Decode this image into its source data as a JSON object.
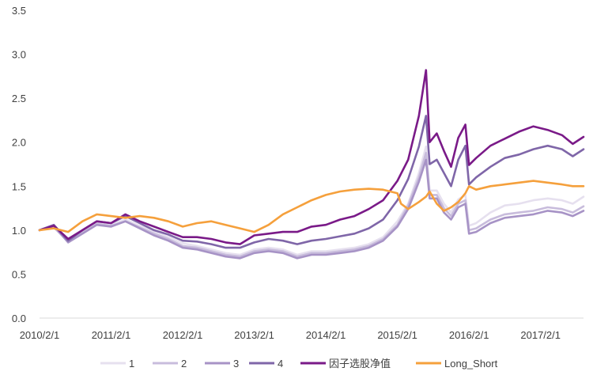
{
  "chart_data": {
    "type": "line",
    "title": "",
    "xlabel": "",
    "ylabel": "",
    "ylim": [
      0.0,
      3.5
    ],
    "y_ticks": [
      "0.0",
      "0.5",
      "1.0",
      "1.5",
      "2.0",
      "2.5",
      "3.0",
      "3.5"
    ],
    "x_ticks": [
      "2010/2/1",
      "2011/2/1",
      "2012/2/1",
      "2013/2/1",
      "2014/2/1",
      "2015/2/1",
      "2016/2/1",
      "2017/2/1"
    ],
    "x_tick_values": [
      2010.0,
      2011.0,
      2012.0,
      2013.0,
      2014.0,
      2015.0,
      2016.0,
      2017.0
    ],
    "xlim": [
      2010.0,
      2017.6
    ],
    "grid": false,
    "legend_position": "bottom",
    "series": [
      {
        "name": "1",
        "color": "#e6e0ef",
        "points": [
          [
            2010.0,
            1.0
          ],
          [
            2010.2,
            1.04
          ],
          [
            2010.4,
            0.88
          ],
          [
            2010.6,
            0.98
          ],
          [
            2010.8,
            1.08
          ],
          [
            2011.0,
            1.06
          ],
          [
            2011.2,
            1.12
          ],
          [
            2011.4,
            1.05
          ],
          [
            2011.6,
            0.98
          ],
          [
            2011.8,
            0.92
          ],
          [
            2012.0,
            0.85
          ],
          [
            2012.2,
            0.82
          ],
          [
            2012.4,
            0.78
          ],
          [
            2012.6,
            0.74
          ],
          [
            2012.8,
            0.72
          ],
          [
            2013.0,
            0.78
          ],
          [
            2013.2,
            0.8
          ],
          [
            2013.4,
            0.78
          ],
          [
            2013.6,
            0.72
          ],
          [
            2013.8,
            0.76
          ],
          [
            2014.0,
            0.76
          ],
          [
            2014.2,
            0.78
          ],
          [
            2014.4,
            0.8
          ],
          [
            2014.6,
            0.84
          ],
          [
            2014.8,
            0.92
          ],
          [
            2015.0,
            1.1
          ],
          [
            2015.15,
            1.3
          ],
          [
            2015.3,
            1.65
          ],
          [
            2015.4,
            1.95
          ],
          [
            2015.45,
            1.45
          ],
          [
            2015.55,
            1.45
          ],
          [
            2015.65,
            1.3
          ],
          [
            2015.75,
            1.2
          ],
          [
            2015.85,
            1.35
          ],
          [
            2015.95,
            1.4
          ],
          [
            2016.0,
            1.05
          ],
          [
            2016.1,
            1.08
          ],
          [
            2016.3,
            1.2
          ],
          [
            2016.5,
            1.28
          ],
          [
            2016.7,
            1.3
          ],
          [
            2016.9,
            1.34
          ],
          [
            2017.1,
            1.36
          ],
          [
            2017.3,
            1.34
          ],
          [
            2017.45,
            1.3
          ],
          [
            2017.6,
            1.38
          ]
        ]
      },
      {
        "name": "2",
        "color": "#c8bcdc",
        "points": [
          [
            2010.0,
            1.0
          ],
          [
            2010.2,
            1.03
          ],
          [
            2010.4,
            0.87
          ],
          [
            2010.6,
            0.97
          ],
          [
            2010.8,
            1.07
          ],
          [
            2011.0,
            1.05
          ],
          [
            2011.2,
            1.1
          ],
          [
            2011.4,
            1.03
          ],
          [
            2011.6,
            0.96
          ],
          [
            2011.8,
            0.9
          ],
          [
            2012.0,
            0.82
          ],
          [
            2012.2,
            0.8
          ],
          [
            2012.4,
            0.76
          ],
          [
            2012.6,
            0.72
          ],
          [
            2012.8,
            0.7
          ],
          [
            2013.0,
            0.76
          ],
          [
            2013.2,
            0.78
          ],
          [
            2013.4,
            0.76
          ],
          [
            2013.6,
            0.7
          ],
          [
            2013.8,
            0.74
          ],
          [
            2014.0,
            0.74
          ],
          [
            2014.2,
            0.76
          ],
          [
            2014.4,
            0.78
          ],
          [
            2014.6,
            0.82
          ],
          [
            2014.8,
            0.9
          ],
          [
            2015.0,
            1.06
          ],
          [
            2015.15,
            1.28
          ],
          [
            2015.3,
            1.6
          ],
          [
            2015.4,
            1.88
          ],
          [
            2015.45,
            1.4
          ],
          [
            2015.55,
            1.4
          ],
          [
            2015.65,
            1.25
          ],
          [
            2015.75,
            1.16
          ],
          [
            2015.85,
            1.3
          ],
          [
            2015.95,
            1.34
          ],
          [
            2016.0,
            1.0
          ],
          [
            2016.1,
            1.02
          ],
          [
            2016.3,
            1.12
          ],
          [
            2016.5,
            1.18
          ],
          [
            2016.7,
            1.2
          ],
          [
            2016.9,
            1.22
          ],
          [
            2017.1,
            1.26
          ],
          [
            2017.3,
            1.24
          ],
          [
            2017.45,
            1.2
          ],
          [
            2017.6,
            1.27
          ]
        ]
      },
      {
        "name": "3",
        "color": "#a793c6",
        "points": [
          [
            2010.0,
            1.0
          ],
          [
            2010.2,
            1.05
          ],
          [
            2010.4,
            0.86
          ],
          [
            2010.6,
            0.96
          ],
          [
            2010.8,
            1.06
          ],
          [
            2011.0,
            1.04
          ],
          [
            2011.2,
            1.1
          ],
          [
            2011.4,
            1.02
          ],
          [
            2011.6,
            0.94
          ],
          [
            2011.8,
            0.88
          ],
          [
            2012.0,
            0.8
          ],
          [
            2012.2,
            0.78
          ],
          [
            2012.4,
            0.74
          ],
          [
            2012.6,
            0.7
          ],
          [
            2012.8,
            0.68
          ],
          [
            2013.0,
            0.74
          ],
          [
            2013.2,
            0.76
          ],
          [
            2013.4,
            0.74
          ],
          [
            2013.6,
            0.68
          ],
          [
            2013.8,
            0.72
          ],
          [
            2014.0,
            0.72
          ],
          [
            2014.2,
            0.74
          ],
          [
            2014.4,
            0.76
          ],
          [
            2014.6,
            0.8
          ],
          [
            2014.8,
            0.88
          ],
          [
            2015.0,
            1.04
          ],
          [
            2015.15,
            1.24
          ],
          [
            2015.3,
            1.55
          ],
          [
            2015.4,
            1.8
          ],
          [
            2015.45,
            1.36
          ],
          [
            2015.55,
            1.36
          ],
          [
            2015.65,
            1.2
          ],
          [
            2015.75,
            1.12
          ],
          [
            2015.85,
            1.26
          ],
          [
            2015.95,
            1.3
          ],
          [
            2016.0,
            0.96
          ],
          [
            2016.1,
            0.98
          ],
          [
            2016.3,
            1.08
          ],
          [
            2016.5,
            1.14
          ],
          [
            2016.7,
            1.16
          ],
          [
            2016.9,
            1.18
          ],
          [
            2017.1,
            1.22
          ],
          [
            2017.3,
            1.2
          ],
          [
            2017.45,
            1.16
          ],
          [
            2017.6,
            1.22
          ]
        ]
      },
      {
        "name": "4",
        "color": "#7f66a8",
        "points": [
          [
            2010.0,
            1.0
          ],
          [
            2010.2,
            1.06
          ],
          [
            2010.4,
            0.88
          ],
          [
            2010.6,
            1.0
          ],
          [
            2010.8,
            1.1
          ],
          [
            2011.0,
            1.08
          ],
          [
            2011.2,
            1.16
          ],
          [
            2011.4,
            1.08
          ],
          [
            2011.6,
            1.0
          ],
          [
            2011.8,
            0.95
          ],
          [
            2012.0,
            0.88
          ],
          [
            2012.2,
            0.87
          ],
          [
            2012.4,
            0.84
          ],
          [
            2012.6,
            0.8
          ],
          [
            2012.8,
            0.8
          ],
          [
            2013.0,
            0.86
          ],
          [
            2013.2,
            0.9
          ],
          [
            2013.4,
            0.88
          ],
          [
            2013.6,
            0.84
          ],
          [
            2013.8,
            0.88
          ],
          [
            2014.0,
            0.9
          ],
          [
            2014.2,
            0.93
          ],
          [
            2014.4,
            0.96
          ],
          [
            2014.6,
            1.02
          ],
          [
            2014.8,
            1.12
          ],
          [
            2015.0,
            1.34
          ],
          [
            2015.15,
            1.58
          ],
          [
            2015.3,
            1.95
          ],
          [
            2015.4,
            2.3
          ],
          [
            2015.45,
            1.75
          ],
          [
            2015.55,
            1.8
          ],
          [
            2015.65,
            1.65
          ],
          [
            2015.75,
            1.5
          ],
          [
            2015.85,
            1.8
          ],
          [
            2015.95,
            1.96
          ],
          [
            2016.0,
            1.52
          ],
          [
            2016.1,
            1.6
          ],
          [
            2016.3,
            1.72
          ],
          [
            2016.5,
            1.82
          ],
          [
            2016.7,
            1.86
          ],
          [
            2016.9,
            1.92
          ],
          [
            2017.1,
            1.96
          ],
          [
            2017.3,
            1.92
          ],
          [
            2017.45,
            1.84
          ],
          [
            2017.6,
            1.92
          ]
        ]
      },
      {
        "name": "因子选股净值",
        "color": "#7a1a88",
        "points": [
          [
            2010.0,
            1.0
          ],
          [
            2010.2,
            1.05
          ],
          [
            2010.4,
            0.9
          ],
          [
            2010.6,
            1.0
          ],
          [
            2010.8,
            1.1
          ],
          [
            2011.0,
            1.08
          ],
          [
            2011.2,
            1.18
          ],
          [
            2011.4,
            1.1
          ],
          [
            2011.6,
            1.04
          ],
          [
            2011.8,
            0.98
          ],
          [
            2012.0,
            0.92
          ],
          [
            2012.2,
            0.92
          ],
          [
            2012.4,
            0.9
          ],
          [
            2012.6,
            0.86
          ],
          [
            2012.8,
            0.84
          ],
          [
            2013.0,
            0.94
          ],
          [
            2013.2,
            0.96
          ],
          [
            2013.4,
            0.98
          ],
          [
            2013.6,
            0.98
          ],
          [
            2013.8,
            1.04
          ],
          [
            2014.0,
            1.06
          ],
          [
            2014.2,
            1.12
          ],
          [
            2014.4,
            1.16
          ],
          [
            2014.6,
            1.24
          ],
          [
            2014.8,
            1.34
          ],
          [
            2015.0,
            1.56
          ],
          [
            2015.15,
            1.8
          ],
          [
            2015.3,
            2.3
          ],
          [
            2015.4,
            2.82
          ],
          [
            2015.45,
            2.0
          ],
          [
            2015.55,
            2.1
          ],
          [
            2015.65,
            1.9
          ],
          [
            2015.75,
            1.72
          ],
          [
            2015.85,
            2.05
          ],
          [
            2015.95,
            2.2
          ],
          [
            2016.0,
            1.74
          ],
          [
            2016.1,
            1.82
          ],
          [
            2016.3,
            1.96
          ],
          [
            2016.5,
            2.04
          ],
          [
            2016.7,
            2.12
          ],
          [
            2016.9,
            2.18
          ],
          [
            2017.1,
            2.14
          ],
          [
            2017.3,
            2.08
          ],
          [
            2017.45,
            1.98
          ],
          [
            2017.6,
            2.06
          ]
        ]
      },
      {
        "name": "Long_Short",
        "color": "#f5a03c",
        "points": [
          [
            2010.0,
            1.0
          ],
          [
            2010.2,
            1.02
          ],
          [
            2010.4,
            0.98
          ],
          [
            2010.6,
            1.1
          ],
          [
            2010.8,
            1.18
          ],
          [
            2011.0,
            1.16
          ],
          [
            2011.2,
            1.14
          ],
          [
            2011.4,
            1.16
          ],
          [
            2011.6,
            1.14
          ],
          [
            2011.8,
            1.1
          ],
          [
            2012.0,
            1.04
          ],
          [
            2012.2,
            1.08
          ],
          [
            2012.4,
            1.1
          ],
          [
            2012.6,
            1.06
          ],
          [
            2012.8,
            1.02
          ],
          [
            2013.0,
            0.98
          ],
          [
            2013.2,
            1.06
          ],
          [
            2013.4,
            1.18
          ],
          [
            2013.6,
            1.26
          ],
          [
            2013.8,
            1.34
          ],
          [
            2014.0,
            1.4
          ],
          [
            2014.2,
            1.44
          ],
          [
            2014.4,
            1.46
          ],
          [
            2014.6,
            1.47
          ],
          [
            2014.8,
            1.46
          ],
          [
            2015.0,
            1.42
          ],
          [
            2015.05,
            1.3
          ],
          [
            2015.15,
            1.24
          ],
          [
            2015.3,
            1.32
          ],
          [
            2015.4,
            1.38
          ],
          [
            2015.45,
            1.44
          ],
          [
            2015.55,
            1.3
          ],
          [
            2015.65,
            1.22
          ],
          [
            2015.75,
            1.26
          ],
          [
            2015.85,
            1.32
          ],
          [
            2015.95,
            1.42
          ],
          [
            2016.0,
            1.5
          ],
          [
            2016.1,
            1.46
          ],
          [
            2016.3,
            1.5
          ],
          [
            2016.5,
            1.52
          ],
          [
            2016.7,
            1.54
          ],
          [
            2016.9,
            1.56
          ],
          [
            2017.1,
            1.54
          ],
          [
            2017.3,
            1.52
          ],
          [
            2017.45,
            1.5
          ],
          [
            2017.6,
            1.5
          ]
        ]
      }
    ]
  }
}
